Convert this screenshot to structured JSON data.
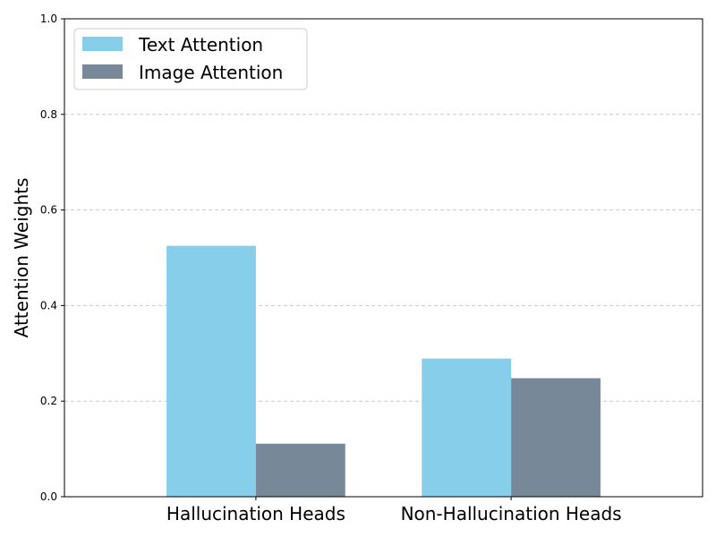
{
  "chart_data": {
    "type": "bar",
    "title": "",
    "xlabel": "",
    "ylabel": "Attention Weights",
    "categories": [
      "Hallucination Heads",
      "Non-Hallucination Heads"
    ],
    "series": [
      {
        "name": "Text Attention",
        "values": [
          0.525,
          0.289
        ],
        "color": "#87CEEB"
      },
      {
        "name": "Image Attention",
        "values": [
          0.111,
          0.248
        ],
        "color": "#778899"
      }
    ],
    "ylim": [
      0.0,
      1.0
    ],
    "yticks": [
      "0.0",
      "0.2",
      "0.4",
      "0.6",
      "0.8",
      "1.0"
    ],
    "grid": "y-dashed",
    "legend_position": "top-left"
  }
}
